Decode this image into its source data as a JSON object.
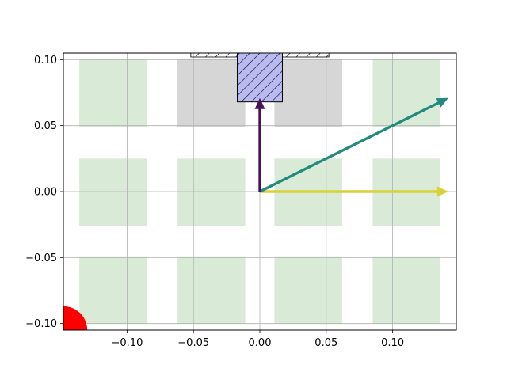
{
  "chart_data": {
    "type": "quiver",
    "title": "",
    "xlabel": "",
    "ylabel": "",
    "xlim": [
      -0.148,
      0.148
    ],
    "ylim": [
      -0.105,
      0.105
    ],
    "grid": true,
    "x_ticks": [
      {
        "value": -0.1,
        "label": "−0.10"
      },
      {
        "value": -0.05,
        "label": "−0.05"
      },
      {
        "value": 0.0,
        "label": "0.00"
      },
      {
        "value": 0.05,
        "label": "0.05"
      },
      {
        "value": 0.1,
        "label": "0.10"
      }
    ],
    "y_ticks": [
      {
        "value": -0.1,
        "label": "−0.10"
      },
      {
        "value": -0.05,
        "label": "−0.05"
      },
      {
        "value": 0.0,
        "label": "0.00"
      },
      {
        "value": 0.05,
        "label": "0.05"
      },
      {
        "value": 0.1,
        "label": "0.10"
      }
    ],
    "green_grid_x_ranges": [
      [
        -0.136,
        -0.085
      ],
      [
        -0.062,
        -0.011
      ],
      [
        0.011,
        0.062
      ],
      [
        0.085,
        0.136
      ]
    ],
    "green_grid_y_ranges": [
      [
        -0.1,
        -0.049
      ],
      [
        -0.026,
        0.025
      ],
      [
        0.049,
        0.1
      ]
    ],
    "gray_cells": [
      {
        "x": [
          -0.062,
          -0.011
        ],
        "y": [
          0.049,
          0.1
        ]
      },
      {
        "x": [
          0.011,
          0.062
        ],
        "y": [
          0.049,
          0.1
        ]
      }
    ],
    "hatched_band": {
      "x": [
        -0.052,
        0.052
      ],
      "y": [
        0.102,
        0.105
      ]
    },
    "hatched_box": {
      "x": [
        -0.017,
        0.017
      ],
      "y": [
        0.068,
        0.105
      ]
    },
    "circle": {
      "cx": -0.148,
      "cy": -0.105,
      "r": 0.018
    },
    "arrows": [
      {
        "x": 0,
        "y": 0,
        "u": 0.142,
        "v": 0.0,
        "color": "#d8d23a"
      },
      {
        "x": 0,
        "y": 0,
        "u": 0.142,
        "v": 0.071,
        "color": "#238a7e"
      },
      {
        "x": 0,
        "y": 0,
        "u": 0.0,
        "v": 0.071,
        "color": "#4a1257"
      }
    ],
    "colors": {
      "green_cell": "#d9ead7",
      "gray_cell": "#d6d6d6",
      "hatch_fill": "#babaf2",
      "circle": "#ff0000",
      "grid": "#b0b0b0"
    }
  }
}
